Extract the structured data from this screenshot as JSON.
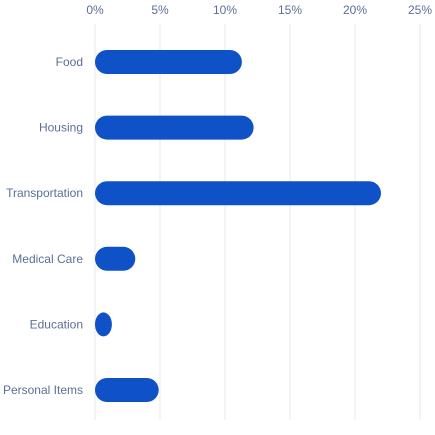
{
  "chart_data": {
    "type": "bar",
    "orientation": "horizontal",
    "title": "",
    "xlabel": "",
    "ylabel": "",
    "categories": [
      "Food",
      "Housing",
      "Transportation",
      "Medical Care",
      "Education",
      "Personal Items"
    ],
    "values": [
      11.3,
      12.2,
      22.0,
      3.1,
      1.3,
      4.9
    ],
    "value_unit": "%",
    "xlim": [
      0,
      25
    ],
    "x_ticks": [
      0,
      5,
      10,
      15,
      20,
      25
    ],
    "x_tick_labels": [
      "0%",
      "5%",
      "10%",
      "15%",
      "20%",
      "25%"
    ],
    "x_axis_position": "top",
    "grid": true,
    "legend": false,
    "bar_color": "#0f52c7",
    "text_color": "#5a6f96",
    "grid_color": "#e6e8ee"
  }
}
